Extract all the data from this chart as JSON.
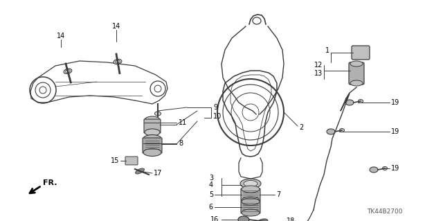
{
  "bg_color": "#ffffff",
  "part_number": "TK44B2700",
  "line_color": "#3a3a3a",
  "label_fontsize": 7.0,
  "fig_w": 6.4,
  "fig_h": 3.19,
  "dpi": 100
}
